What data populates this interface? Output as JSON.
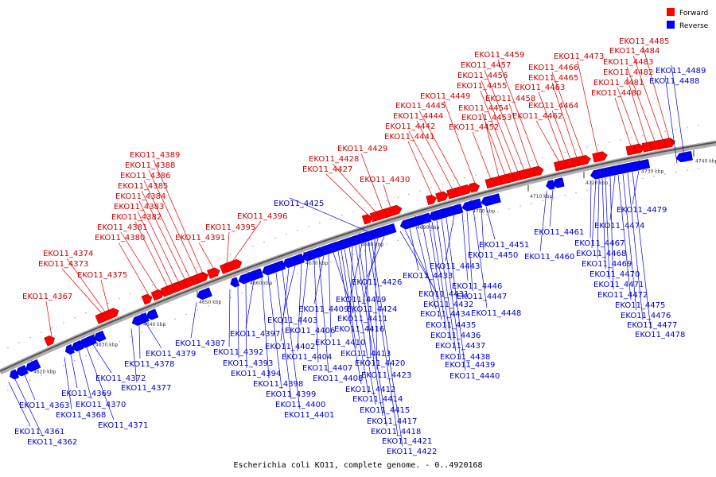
{
  "legend": {
    "forward_label": "Forward",
    "reverse_label": "Reverse",
    "forward_color": "#ff0000",
    "reverse_color": "#0000ff"
  },
  "caption": "Escherichia coli KO11, complete genome. - 0..4920168",
  "ticks": [
    "4620 kbp",
    "4630 kbp",
    "4640 kbp",
    "4650 kbp",
    "4660 kbp",
    "4670 kbp",
    "4680 kbp",
    "4690 kbp",
    "4700 kbp",
    "4710 kbp",
    "4720 kbp",
    "4730 kbp",
    "4740 kbp"
  ],
  "forward_genes": [
    "EKO11_4367",
    "EKO11_4373",
    "EKO11_4374",
    "EKO11_4375",
    "EKO11_4380",
    "EKO11_4381",
    "EKO11_4382",
    "EKO11_4383",
    "EKO11_4384",
    "EKO11_4385",
    "EKO11_4386",
    "EKO11_4388",
    "EKO11_4389",
    "EKO11_4391",
    "EKO11_4395",
    "EKO11_4396",
    "EKO11_4427",
    "EKO11_4428",
    "EKO11_4429",
    "EKO11_4430",
    "EKO11_4441",
    "EKO11_4442",
    "EKO11_4444",
    "EKO11_4445",
    "EKO11_4449",
    "EKO11_4452",
    "EKO11_4453",
    "EKO11_4454",
    "EKO11_4455",
    "EKO11_4456",
    "EKO11_4457",
    "EKO11_4458",
    "EKO11_4459",
    "EKO11_4462",
    "EKO11_4463",
    "EKO11_4464",
    "EKO11_4465",
    "EKO11_4466",
    "EKO11_4473",
    "EKO11_4480",
    "EKO11_4481",
    "EKO11_4482",
    "EKO11_4483",
    "EKO11_4484",
    "EKO11_4485"
  ],
  "reverse_genes": [
    "EKO11_4361",
    "EKO11_4362",
    "EKO11_4363",
    "EKO11_4368",
    "EKO11_4369",
    "EKO11_4370",
    "EKO11_4371",
    "EKO11_4372",
    "EKO11_4377",
    "EKO11_4378",
    "EKO11_4379",
    "EKO11_4387",
    "EKO11_4392",
    "EKO11_4393",
    "EKO11_4394",
    "EKO11_4397",
    "EKO11_4398",
    "EKO11_4399",
    "EKO11_4400",
    "EKO11_4401",
    "EKO11_4402",
    "EKO11_4403",
    "EKO11_4404",
    "EKO11_4406",
    "EKO11_4407",
    "EKO11_4408",
    "EKO11_4409",
    "EKO11_4410",
    "EKO11_4411",
    "EKO11_4412",
    "EKO11_4413",
    "EKO11_4414",
    "EKO11_4415",
    "EKO11_4416",
    "EKO11_4417",
    "EKO11_4418",
    "EKO11_4419",
    "EKO11_4420",
    "EKO11_4421",
    "EKO11_4422",
    "EKO11_4423",
    "EKO11_4424",
    "EKO11_4425",
    "EKO11_4426",
    "EKO11_4431",
    "EKO11_4432",
    "EKO11_4433",
    "EKO11_4434",
    "EKO11_4435",
    "EKO11_4436",
    "EKO11_4437",
    "EKO11_4438",
    "EKO11_4439",
    "EKO11_4440",
    "EKO11_4443",
    "EKO11_4446",
    "EKO11_4447",
    "EKO11_4448",
    "EKO11_4450",
    "EKO11_4451",
    "EKO11_4460",
    "EKO11_4461",
    "EKO11_4467",
    "EKO11_4468",
    "EKO11_4469",
    "EKO11_4470",
    "EKO11_4471",
    "EKO11_4472",
    "EKO11_4474",
    "EKO11_4475",
    "EKO11_4476",
    "EKO11_4477",
    "EKO11_4478",
    "EKO11_4479",
    "EKO11_4488",
    "EKO11_4489"
  ]
}
